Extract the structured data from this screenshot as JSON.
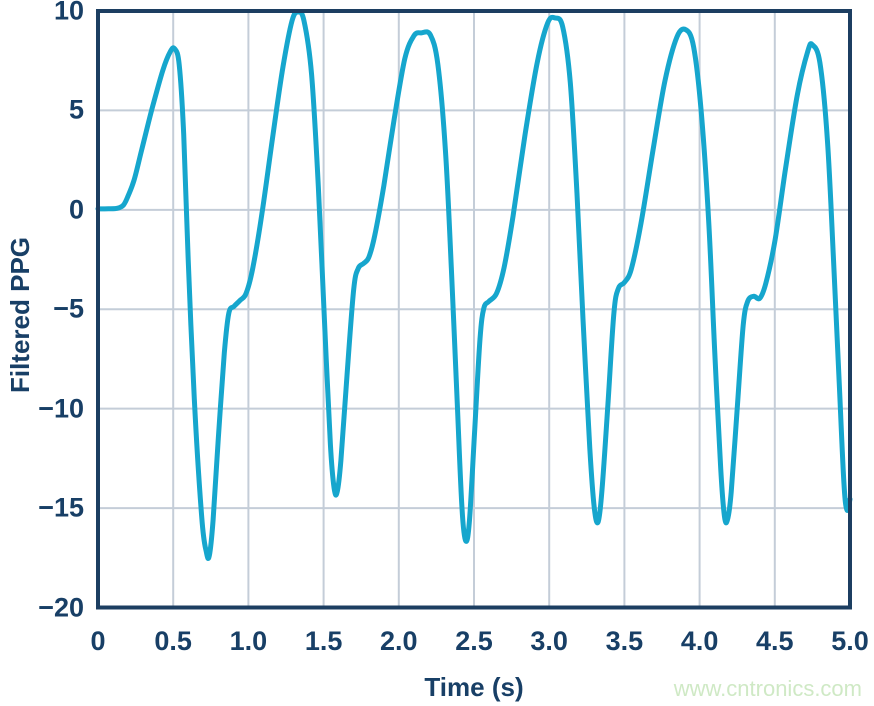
{
  "watermark": {
    "text": "www.cntronics.com",
    "color": "#cfe9c5"
  },
  "chart_data": {
    "type": "line",
    "title": "",
    "xlabel": "Time (s)",
    "ylabel": "Filtered PPG",
    "xlim": [
      0,
      5
    ],
    "ylim": [
      -20,
      10
    ],
    "grid": true,
    "legend_position": "none",
    "line_color": "#16a6cd",
    "frame_color": "#1c3e61",
    "grid_color": "#c4cdd8",
    "tick_color": "#183f66",
    "x_ticks": [
      {
        "value": 0,
        "label": "0"
      },
      {
        "value": 0.5,
        "label": "0.5"
      },
      {
        "value": 1.0,
        "label": "1.0"
      },
      {
        "value": 1.5,
        "label": "1.5"
      },
      {
        "value": 2.0,
        "label": "2.0"
      },
      {
        "value": 2.5,
        "label": "2.5"
      },
      {
        "value": 3.0,
        "label": "3.0"
      },
      {
        "value": 3.5,
        "label": "3.5"
      },
      {
        "value": 4.0,
        "label": "4.0"
      },
      {
        "value": 4.5,
        "label": "4.5"
      },
      {
        "value": 5.0,
        "label": "5.0"
      }
    ],
    "y_ticks": [
      {
        "value": 10,
        "label": "10"
      },
      {
        "value": 5,
        "label": "5"
      },
      {
        "value": 0,
        "label": "0"
      },
      {
        "value": -5,
        "label": "−5"
      },
      {
        "value": -10,
        "label": "−10"
      },
      {
        "value": -15,
        "label": "−15"
      },
      {
        "value": -20,
        "label": "−20"
      }
    ],
    "series": [
      {
        "name": "Filtered PPG",
        "points": [
          [
            0,
            0.05
          ],
          [
            0.07,
            0.05
          ],
          [
            0.13,
            0.08
          ],
          [
            0.17,
            0.25
          ],
          [
            0.2,
            0.7
          ],
          [
            0.24,
            1.5
          ],
          [
            0.29,
            3.0
          ],
          [
            0.36,
            5.1
          ],
          [
            0.43,
            7.0
          ],
          [
            0.48,
            7.95
          ],
          [
            0.51,
            8.1
          ],
          [
            0.54,
            7.3
          ],
          [
            0.57,
            3.8
          ],
          [
            0.6,
            -2.5
          ],
          [
            0.64,
            -9.5
          ],
          [
            0.69,
            -15.5
          ],
          [
            0.72,
            -17.2
          ],
          [
            0.74,
            -17.4
          ],
          [
            0.765,
            -15.6
          ],
          [
            0.8,
            -11.5
          ],
          [
            0.84,
            -7.2
          ],
          [
            0.87,
            -5.2
          ],
          [
            0.905,
            -4.85
          ],
          [
            0.945,
            -4.55
          ],
          [
            0.985,
            -4.2
          ],
          [
            1.03,
            -2.9
          ],
          [
            1.09,
            -0.2
          ],
          [
            1.16,
            3.6
          ],
          [
            1.23,
            7.2
          ],
          [
            1.29,
            9.5
          ],
          [
            1.33,
            9.95
          ],
          [
            1.37,
            9.5
          ],
          [
            1.42,
            6.8
          ],
          [
            1.465,
            1.2
          ],
          [
            1.505,
            -5.5
          ],
          [
            1.545,
            -11.8
          ],
          [
            1.57,
            -14.0
          ],
          [
            1.59,
            -14.2
          ],
          [
            1.615,
            -12.6
          ],
          [
            1.655,
            -8.4
          ],
          [
            1.7,
            -4.0
          ],
          [
            1.73,
            -2.95
          ],
          [
            1.765,
            -2.7
          ],
          [
            1.8,
            -2.4
          ],
          [
            1.84,
            -1.3
          ],
          [
            1.9,
            1.2
          ],
          [
            1.97,
            4.6
          ],
          [
            2.04,
            7.6
          ],
          [
            2.1,
            8.75
          ],
          [
            2.15,
            8.9
          ],
          [
            2.21,
            8.8
          ],
          [
            2.26,
            7.3
          ],
          [
            2.31,
            3.0
          ],
          [
            2.35,
            -3.0
          ],
          [
            2.39,
            -10.0
          ],
          [
            2.42,
            -15.0
          ],
          [
            2.445,
            -16.65
          ],
          [
            2.47,
            -15.6
          ],
          [
            2.505,
            -11.0
          ],
          [
            2.54,
            -6.5
          ],
          [
            2.565,
            -4.95
          ],
          [
            2.6,
            -4.6
          ],
          [
            2.65,
            -4.2
          ],
          [
            2.7,
            -2.9
          ],
          [
            2.76,
            -0.3
          ],
          [
            2.84,
            3.8
          ],
          [
            2.92,
            7.4
          ],
          [
            2.99,
            9.4
          ],
          [
            3.04,
            9.65
          ],
          [
            3.09,
            9.2
          ],
          [
            3.14,
            6.4
          ],
          [
            3.185,
            0.8
          ],
          [
            3.225,
            -5.5
          ],
          [
            3.27,
            -12.0
          ],
          [
            3.3,
            -15.0
          ],
          [
            3.325,
            -15.7
          ],
          [
            3.35,
            -14.2
          ],
          [
            3.39,
            -9.8
          ],
          [
            3.43,
            -5.2
          ],
          [
            3.46,
            -3.95
          ],
          [
            3.5,
            -3.65
          ],
          [
            3.545,
            -3.0
          ],
          [
            3.61,
            -0.7
          ],
          [
            3.69,
            3.0
          ],
          [
            3.77,
            6.5
          ],
          [
            3.85,
            8.7
          ],
          [
            3.91,
            9.05
          ],
          [
            3.96,
            8.2
          ],
          [
            4.01,
            5.0
          ],
          [
            4.06,
            -0.5
          ],
          [
            4.1,
            -7.0
          ],
          [
            4.14,
            -13.0
          ],
          [
            4.165,
            -15.4
          ],
          [
            4.185,
            -15.6
          ],
          [
            4.21,
            -14.2
          ],
          [
            4.25,
            -10.0
          ],
          [
            4.29,
            -5.8
          ],
          [
            4.32,
            -4.6
          ],
          [
            4.36,
            -4.35
          ],
          [
            4.4,
            -4.45
          ],
          [
            4.44,
            -3.7
          ],
          [
            4.5,
            -1.6
          ],
          [
            4.57,
            2.0
          ],
          [
            4.65,
            5.8
          ],
          [
            4.72,
            8.0
          ],
          [
            4.75,
            8.3
          ],
          [
            4.8,
            7.4
          ],
          [
            4.85,
            3.5
          ],
          [
            4.89,
            -2.5
          ],
          [
            4.93,
            -9.0
          ],
          [
            4.96,
            -13.8
          ],
          [
            4.98,
            -15.1
          ],
          [
            5.0,
            -14.55
          ]
        ]
      }
    ]
  }
}
